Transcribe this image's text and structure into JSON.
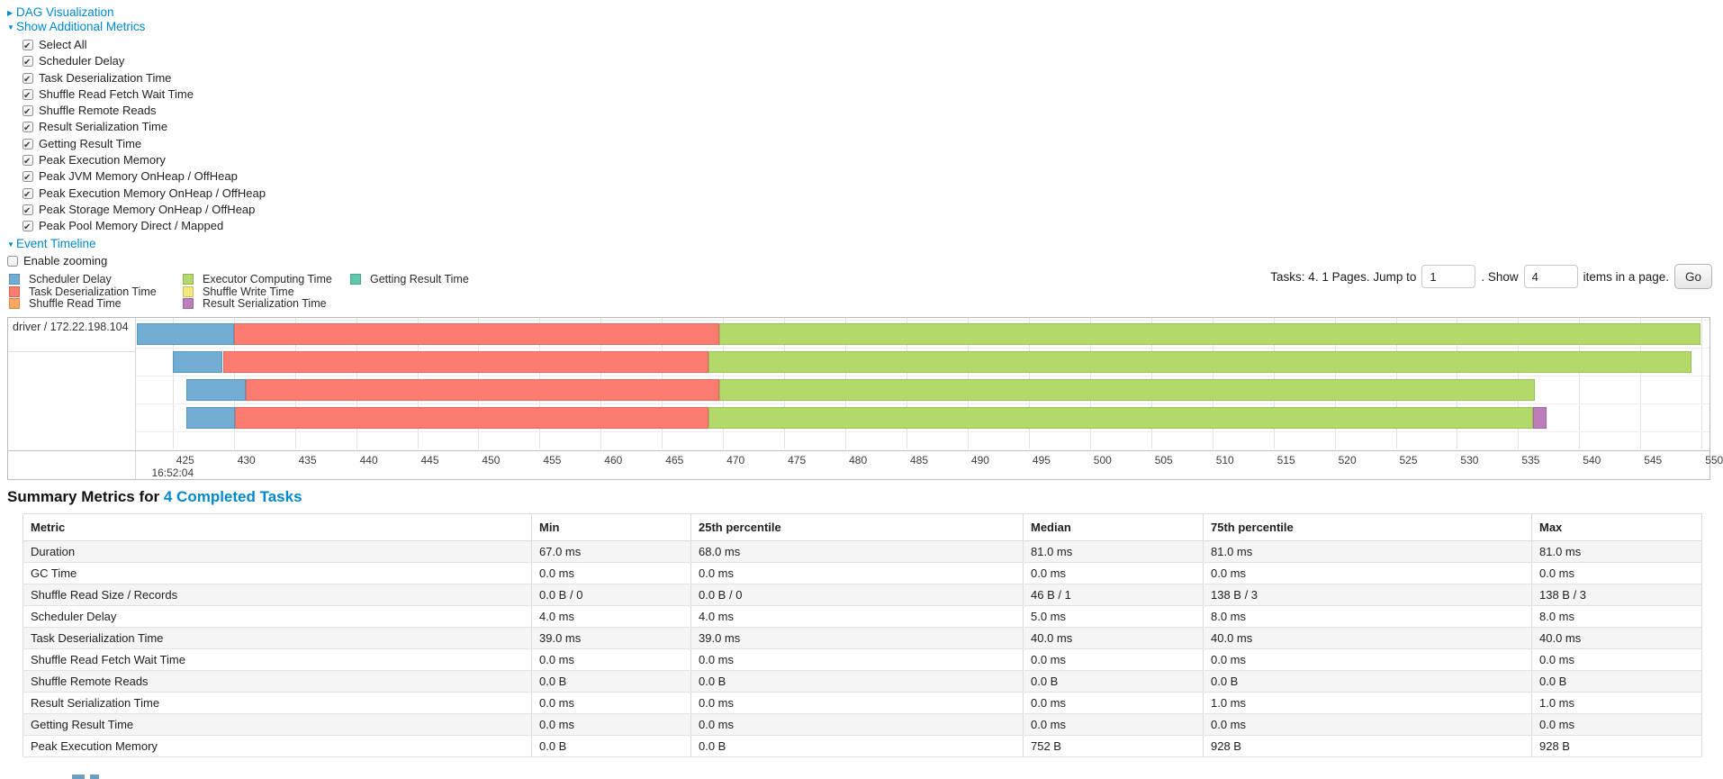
{
  "colors": {
    "link": "#0088cc",
    "chart_border": "#b9b9b9",
    "table_stripe": "#f5f5f5",
    "metric_colors": {
      "Scheduler Delay": {
        "fill": "#72AED3",
        "border": "#5795BC"
      },
      "Task Deserialization Time": {
        "fill": "#FC7D70",
        "border": "#E06A5F"
      },
      "Shuffle Read Time": {
        "fill": "#FCA75C",
        "border": "#E08F49"
      },
      "Executor Computing Time": {
        "fill": "#B2D969",
        "border": "#98C158"
      },
      "Shuffle Write Time": {
        "fill": "#F4E87A",
        "border": "#D9CC5F"
      },
      "Result Serialization Time": {
        "fill": "#BC7FBC",
        "border": "#A564A5"
      },
      "Getting Result Time": {
        "fill": "#60C7AD",
        "border": "#4BAE95"
      }
    }
  },
  "controls": {
    "dag_label": "DAG Visualization",
    "metrics_label": "Show Additional Metrics",
    "event_timeline_label": "Event Timeline",
    "enable_zooming_label": "Enable zooming",
    "enable_zooming_checked": false,
    "metric_checkboxes": [
      {
        "label": "Select All",
        "checked": true
      },
      {
        "label": "Scheduler Delay",
        "checked": true
      },
      {
        "label": "Task Deserialization Time",
        "checked": true
      },
      {
        "label": "Shuffle Read Fetch Wait Time",
        "checked": true
      },
      {
        "label": "Shuffle Remote Reads",
        "checked": true
      },
      {
        "label": "Result Serialization Time",
        "checked": true
      },
      {
        "label": "Getting Result Time",
        "checked": true
      },
      {
        "label": "Peak Execution Memory",
        "checked": true
      },
      {
        "label": "Peak JVM Memory OnHeap / OffHeap",
        "checked": true
      },
      {
        "label": "Peak Execution Memory OnHeap / OffHeap",
        "checked": true
      },
      {
        "label": "Peak Storage Memory OnHeap / OffHeap",
        "checked": true
      },
      {
        "label": "Peak Pool Memory Direct / Mapped",
        "checked": true
      }
    ]
  },
  "legend": {
    "columns": [
      [
        "Scheduler Delay",
        "Task Deserialization Time",
        "Shuffle Read Time"
      ],
      [
        "Executor Computing Time",
        "Shuffle Write Time",
        "Result Serialization Time"
      ],
      [
        "Getting Result Time"
      ]
    ]
  },
  "pagination": {
    "tasks_text": "Tasks: 4. 1 Pages. Jump to",
    "jump_value": "1",
    "show_label": ". Show",
    "show_value": "4",
    "items_label": "items in a page.",
    "go_label": "Go"
  },
  "chart_data": {
    "type": "timeline",
    "group_label": "driver / 172.22.198.104",
    "x_axis": {
      "domain": [
        422.0,
        550.65
      ],
      "ticks": [
        425,
        430,
        435,
        440,
        445,
        450,
        455,
        460,
        465,
        470,
        475,
        480,
        485,
        490,
        495,
        500,
        505,
        510,
        515,
        520,
        525,
        530,
        535,
        540,
        545,
        550
      ],
      "start_time_label": "16:52:04"
    },
    "rows": [
      {
        "segments": [
          {
            "metric": "Scheduler Delay",
            "start": 422.1,
            "end": 430.0
          },
          {
            "metric": "Task Deserialization Time",
            "start": 430.0,
            "end": 469.7
          },
          {
            "metric": "Executor Computing Time",
            "start": 469.7,
            "end": 549.9
          }
        ]
      },
      {
        "segments": [
          {
            "metric": "Scheduler Delay",
            "start": 425.0,
            "end": 429.1
          },
          {
            "metric": "Task Deserialization Time",
            "start": 429.1,
            "end": 468.8
          },
          {
            "metric": "Executor Computing Time",
            "start": 468.8,
            "end": 549.2
          }
        ]
      },
      {
        "segments": [
          {
            "metric": "Scheduler Delay",
            "start": 426.1,
            "end": 431.0
          },
          {
            "metric": "Task Deserialization Time",
            "start": 431.0,
            "end": 469.7
          },
          {
            "metric": "Executor Computing Time",
            "start": 469.7,
            "end": 536.4
          }
        ]
      },
      {
        "segments": [
          {
            "metric": "Scheduler Delay",
            "start": 426.1,
            "end": 430.1
          },
          {
            "metric": "Task Deserialization Time",
            "start": 430.1,
            "end": 468.8
          },
          {
            "metric": "Executor Computing Time",
            "start": 468.8,
            "end": 536.2
          },
          {
            "metric": "Result Serialization Time",
            "start": 536.2,
            "end": 537.3
          }
        ]
      }
    ]
  },
  "summary": {
    "title": "Summary Metrics for",
    "link_label": "4 Completed Tasks",
    "table": {
      "headers": [
        "Metric",
        "Min",
        "25th percentile",
        "Median",
        "75th percentile",
        "Max"
      ],
      "rows": [
        [
          "Duration",
          "67.0 ms",
          "68.0 ms",
          "81.0 ms",
          "81.0 ms",
          "81.0 ms"
        ],
        [
          "GC Time",
          "0.0 ms",
          "0.0 ms",
          "0.0 ms",
          "0.0 ms",
          "0.0 ms"
        ],
        [
          "Shuffle Read Size / Records",
          "0.0 B / 0",
          "0.0 B / 0",
          "46 B / 1",
          "138 B / 3",
          "138 B / 3"
        ],
        [
          "Scheduler Delay",
          "4.0 ms",
          "4.0 ms",
          "5.0 ms",
          "8.0 ms",
          "8.0 ms"
        ],
        [
          "Task Deserialization Time",
          "39.0 ms",
          "39.0 ms",
          "40.0 ms",
          "40.0 ms",
          "40.0 ms"
        ],
        [
          "Shuffle Read Fetch Wait Time",
          "0.0 ms",
          "0.0 ms",
          "0.0 ms",
          "0.0 ms",
          "0.0 ms"
        ],
        [
          "Shuffle Remote Reads",
          "0.0 B",
          "0.0 B",
          "0.0 B",
          "0.0 B",
          "0.0 B"
        ],
        [
          "Result Serialization Time",
          "0.0 ms",
          "0.0 ms",
          "0.0 ms",
          "1.0 ms",
          "1.0 ms"
        ],
        [
          "Getting Result Time",
          "0.0 ms",
          "0.0 ms",
          "0.0 ms",
          "0.0 ms",
          "0.0 ms"
        ],
        [
          "Peak Execution Memory",
          "0.0 B",
          "0.0 B",
          "752 B",
          "928 B",
          "928 B"
        ]
      ]
    }
  }
}
